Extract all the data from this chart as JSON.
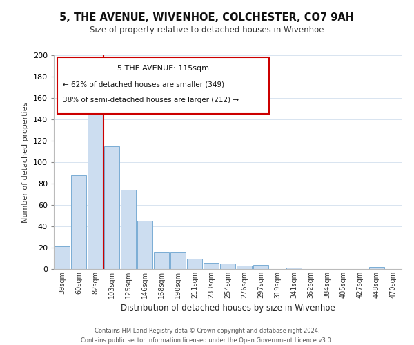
{
  "title": "5, THE AVENUE, WIVENHOE, COLCHESTER, CO7 9AH",
  "subtitle": "Size of property relative to detached houses in Wivenhoe",
  "xlabel": "Distribution of detached houses by size in Wivenhoe",
  "ylabel": "Number of detached properties",
  "categories": [
    "39sqm",
    "60sqm",
    "82sqm",
    "103sqm",
    "125sqm",
    "146sqm",
    "168sqm",
    "190sqm",
    "211sqm",
    "233sqm",
    "254sqm",
    "276sqm",
    "297sqm",
    "319sqm",
    "341sqm",
    "362sqm",
    "384sqm",
    "405sqm",
    "427sqm",
    "448sqm",
    "470sqm"
  ],
  "values": [
    21,
    88,
    166,
    115,
    74,
    45,
    16,
    16,
    10,
    6,
    5,
    3,
    4,
    0,
    1,
    0,
    0,
    0,
    0,
    2,
    0
  ],
  "bar_color": "#ccddf0",
  "bar_edge_color": "#7aadd4",
  "ref_line_color": "#cc0000",
  "ylim": [
    0,
    200
  ],
  "yticks": [
    0,
    20,
    40,
    60,
    80,
    100,
    120,
    140,
    160,
    180,
    200
  ],
  "annotation_title": "5 THE AVENUE: 115sqm",
  "annotation_line1": "← 62% of detached houses are smaller (349)",
  "annotation_line2": "38% of semi-detached houses are larger (212) →",
  "annotation_box_color": "#ffffff",
  "annotation_box_edge": "#cc0000",
  "footer_line1": "Contains HM Land Registry data © Crown copyright and database right 2024.",
  "footer_line2": "Contains public sector information licensed under the Open Government Licence v3.0.",
  "grid_color": "#d8e4f0",
  "background_color": "#ffffff"
}
